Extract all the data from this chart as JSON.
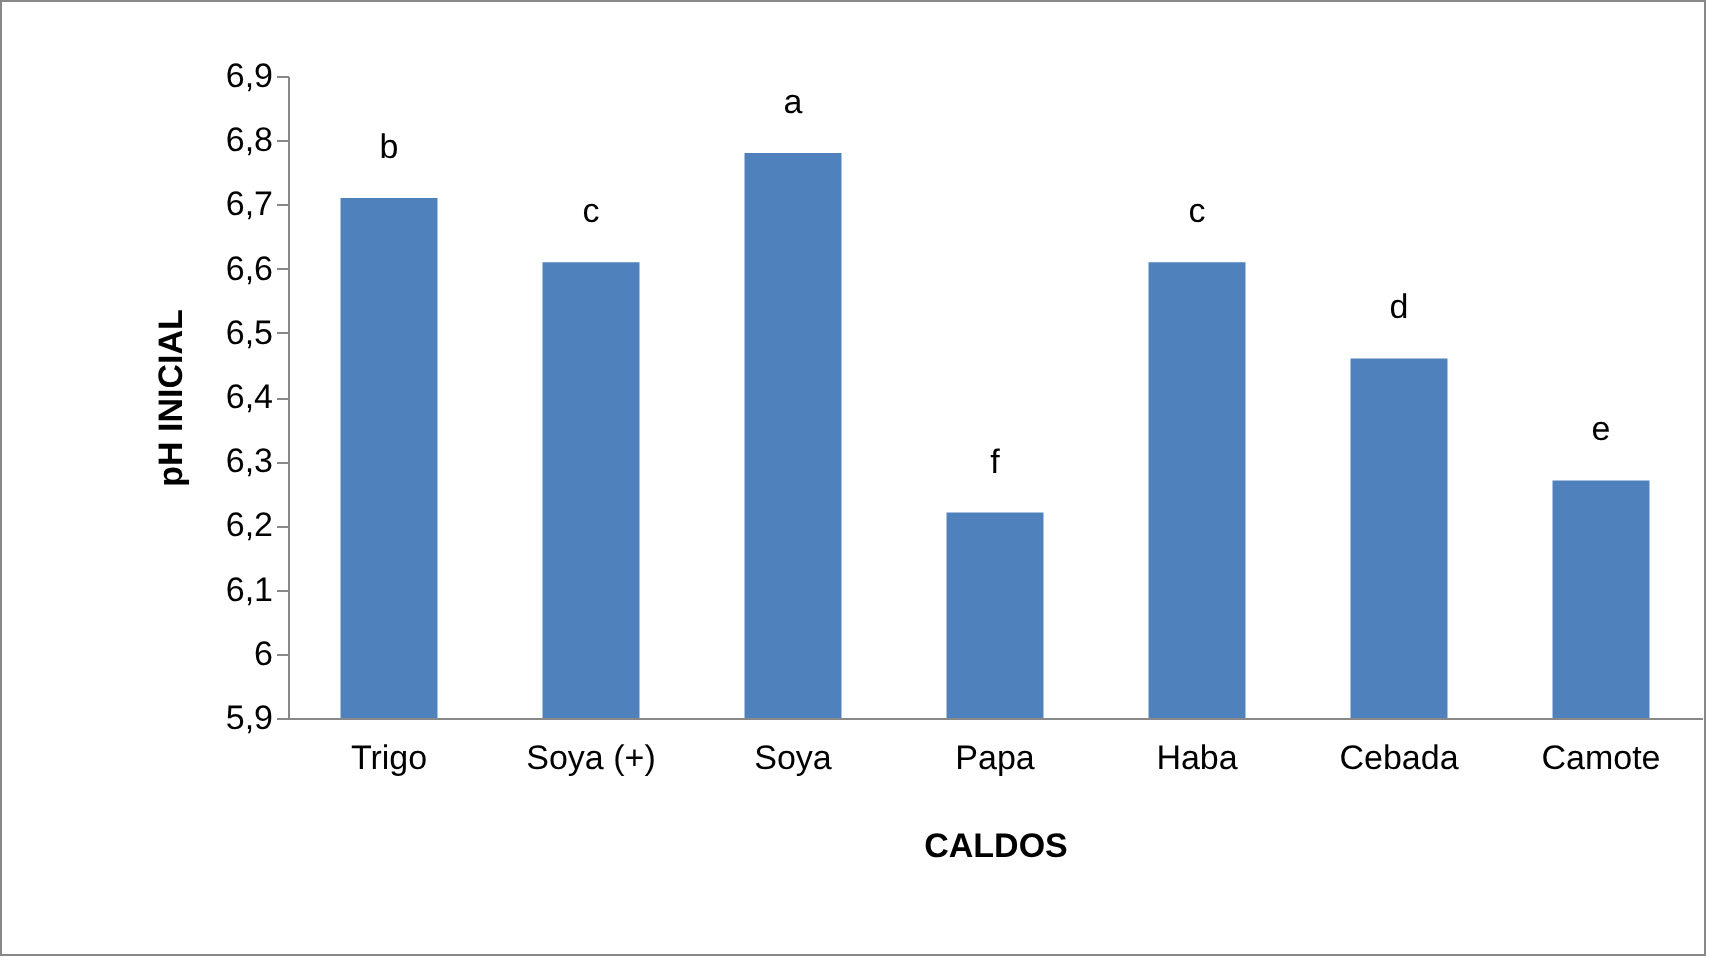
{
  "chart_data": {
    "type": "bar",
    "xlabel": "CALDOS",
    "ylabel": "pH INICIAL",
    "categories": [
      "Trigo",
      "Soya (+)",
      "Soya",
      "Papa",
      "Haba",
      "Cebada",
      "Camote"
    ],
    "values": [
      6.71,
      6.61,
      6.78,
      6.22,
      6.61,
      6.46,
      6.27
    ],
    "color": "#4f81bd",
    "ylim": [
      5.9,
      6.9
    ],
    "yticks": [
      {
        "value": 5.9,
        "label": "5,9"
      },
      6,
      {
        "value": 6.1,
        "label": "6,1"
      },
      {
        "value": 6.2,
        "label": "6,2"
      },
      {
        "value": 6.3,
        "label": "6,3"
      },
      {
        "value": 6.4,
        "label": "6,4"
      },
      {
        "value": 6.5,
        "label": "6,5"
      },
      {
        "value": 6.6,
        "label": "6,6"
      },
      {
        "value": 6.7,
        "label": "6,7"
      },
      {
        "value": 6.8,
        "label": "6,8"
      },
      {
        "value": 6.9,
        "label": "6,9"
      }
    ],
    "grid": false,
    "annotations": [
      {
        "text": "b",
        "x": "Trigo",
        "y": 6.71
      },
      {
        "text": "c",
        "x": "Soya (+)",
        "y": 6.61
      },
      {
        "text": "a",
        "x": "Soya",
        "y": 6.78
      },
      {
        "text": "f",
        "x": "Papa",
        "y": 6.22
      },
      {
        "text": "c",
        "x": "Haba",
        "y": 6.61
      },
      {
        "text": "d",
        "x": "Cebada",
        "y": 6.46
      },
      {
        "text": "e",
        "x": "Camote",
        "y": 6.27
      }
    ]
  }
}
